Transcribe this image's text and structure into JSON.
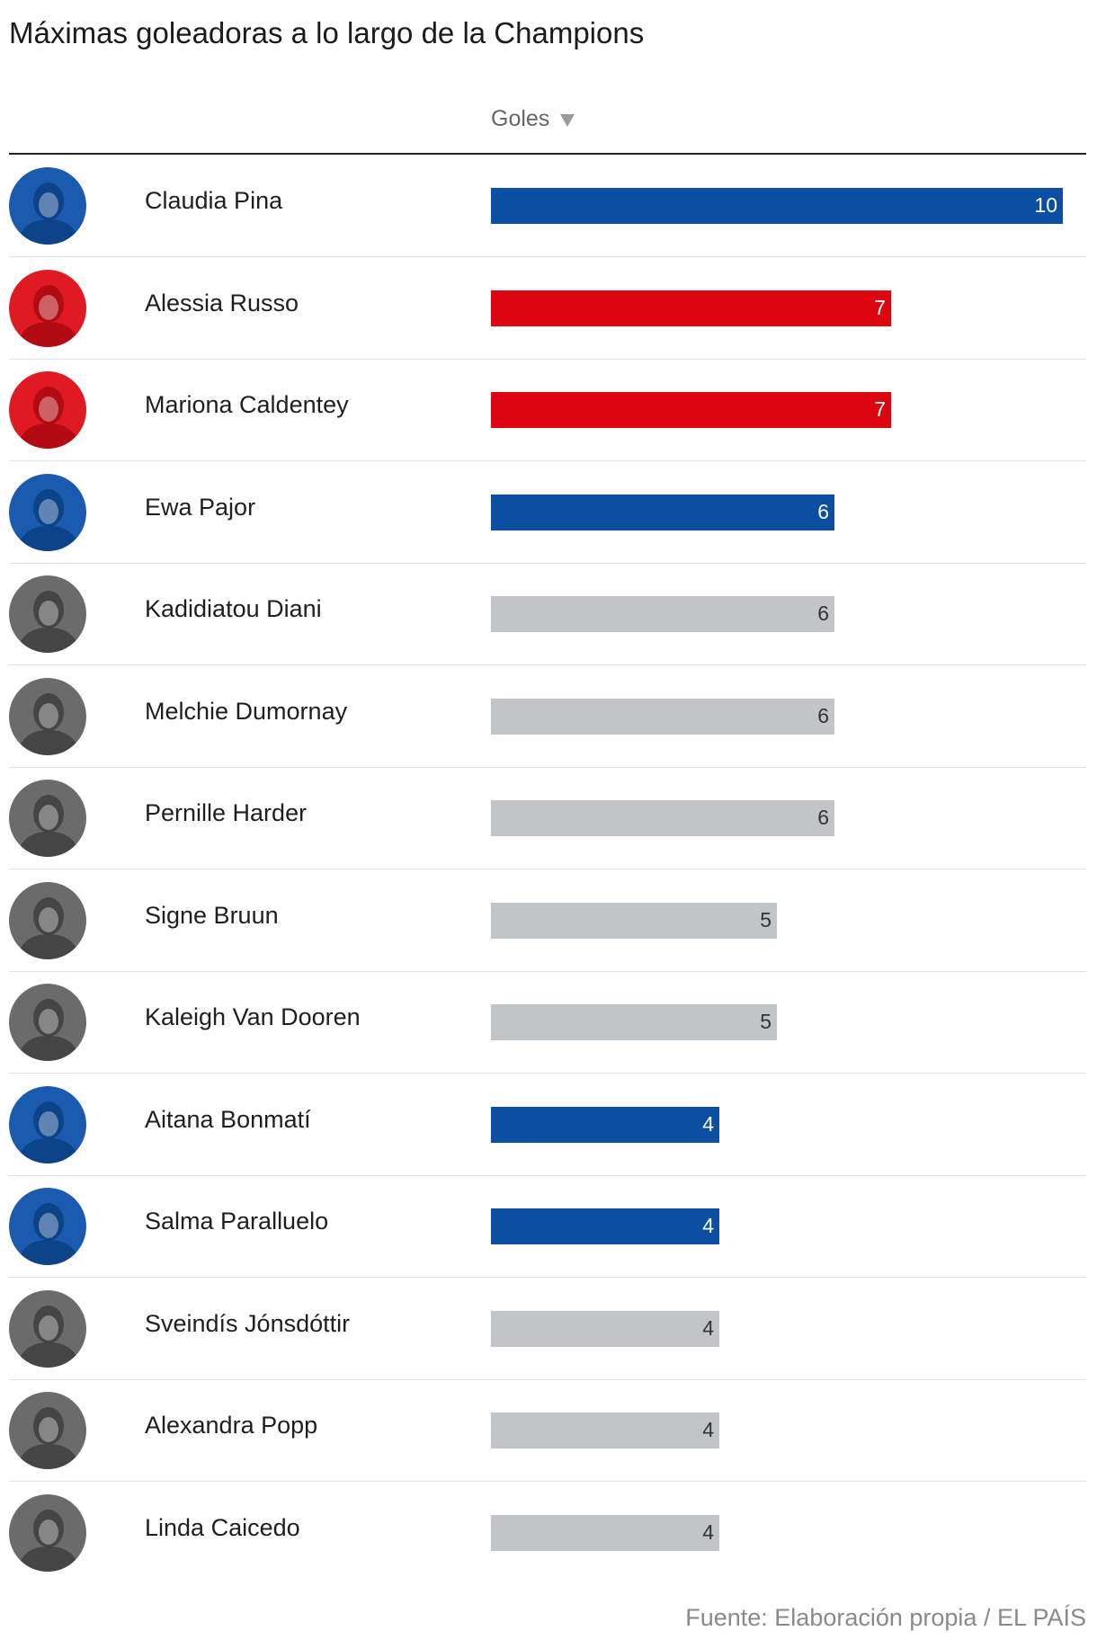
{
  "chart_data": {
    "type": "bar",
    "orientation": "horizontal",
    "title": "Máximas goleadoras a lo largo de la Champions",
    "column_header": "Goles",
    "sort": "descending",
    "xlim": [
      0,
      10
    ],
    "grid": false,
    "colors": {
      "blue": "#0b4fa2",
      "red": "#db0610",
      "gray": "#c2c5c8"
    },
    "categories": [
      "Claudia Pina",
      "Alessia Russo",
      "Mariona Caldentey",
      "Ewa Pajor",
      "Kadidiatou Diani",
      "Melchie Dumornay",
      "Pernille Harder",
      "Signe Bruun",
      "Kaleigh Van Dooren",
      "Aitana Bonmatí",
      "Salma Paralluelo",
      "Sveindís Jónsdóttir",
      "Alexandra Popp",
      "Linda Caicedo"
    ],
    "values": [
      10,
      7,
      7,
      6,
      6,
      6,
      6,
      5,
      5,
      4,
      4,
      4,
      4,
      4
    ],
    "bar_colors": [
      "blue",
      "red",
      "red",
      "blue",
      "gray",
      "gray",
      "gray",
      "gray",
      "gray",
      "blue",
      "blue",
      "gray",
      "gray",
      "gray"
    ],
    "source": "Fuente: Elaboración propia / EL PAÍS"
  }
}
